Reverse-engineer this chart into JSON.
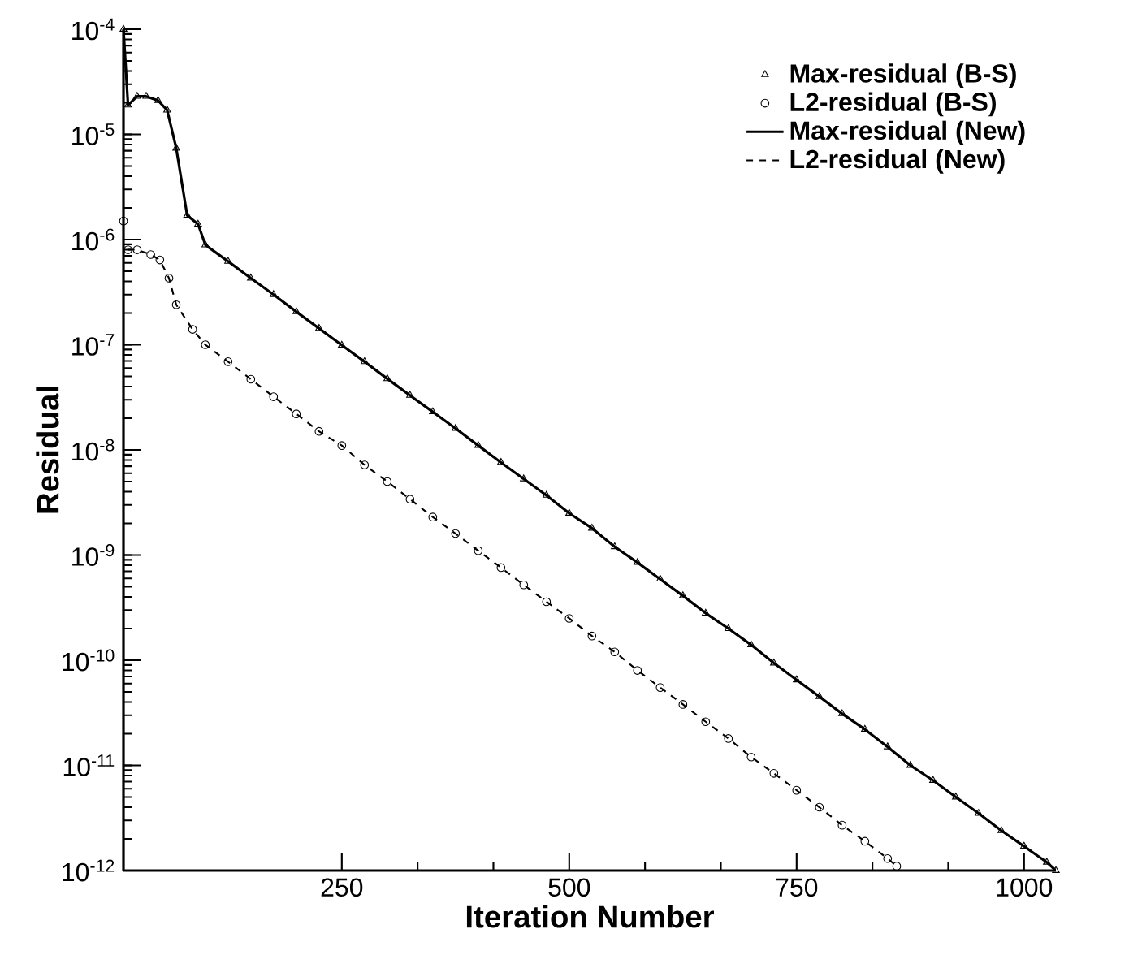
{
  "chart_data": {
    "type": "line",
    "xlabel": "Iteration Number",
    "ylabel": "Residual",
    "xlim": [
      10,
      1035
    ],
    "ylim": [
      1e-12,
      0.0001
    ],
    "log": "y",
    "grid": false,
    "legend": "top right",
    "xticks": [
      250,
      500,
      750,
      1000
    ],
    "yticks": [
      {
        "value": 1e-12,
        "label": "10$^{-12}$"
      },
      {
        "value": 1e-11,
        "label": "10$^{-11}$"
      },
      {
        "value": 1e-10,
        "label": "10$^{-10}$"
      },
      {
        "value": 1e-09,
        "label": "10$^{-9}$"
      },
      {
        "value": 1e-08,
        "label": "10$^{-8}$"
      },
      {
        "value": 1e-07,
        "label": "10$^{-7}$"
      },
      {
        "value": 1e-06,
        "label": "10$^{-6}$"
      },
      {
        "value": 1e-05,
        "label": "10$^{-5}$"
      },
      {
        "value": 0.0001,
        "label": "10$^{-4}$"
      }
    ],
    "series": [
      {
        "name": "Max-residual (B-S)",
        "type": "scatter",
        "marker": "triangle",
        "color": "#000000",
        "x": [
          10,
          15,
          25,
          35,
          48,
          58,
          68,
          80,
          92,
          100,
          125,
          150,
          175,
          200,
          225,
          250,
          275,
          300,
          325,
          350,
          375,
          400,
          425,
          450,
          475,
          500,
          525,
          550,
          575,
          600,
          625,
          650,
          675,
          700,
          725,
          750,
          775,
          800,
          825,
          850,
          875,
          900,
          925,
          950,
          975,
          1000,
          1025,
          1035
        ],
        "values": [
          0.0001,
          1.9e-05,
          2.3e-05,
          2.3e-05,
          2.1e-05,
          1.7e-05,
          7.4e-06,
          1.7e-06,
          1.4e-06,
          8.9e-07,
          6.2e-07,
          4.3e-07,
          3e-07,
          2.06e-07,
          1.43e-07,
          9.9e-08,
          6.9e-08,
          4.75e-08,
          3.3e-08,
          2.3e-08,
          1.6e-08,
          1.1e-08,
          7.6e-09,
          5.3e-09,
          3.7e-09,
          2.5e-09,
          1.8e-09,
          1.2e-09,
          8.5e-10,
          5.9e-10,
          4.1e-10,
          2.8e-10,
          2e-10,
          1.4e-10,
          9.4e-11,
          6.5e-11,
          4.5e-11,
          3.1e-11,
          2.2e-11,
          1.5e-11,
          1e-11,
          7.2e-12,
          5e-12,
          3.5e-12,
          2.4e-12,
          1.7e-12,
          1.2e-12,
          1e-12
        ]
      },
      {
        "name": "L2-residual (B-S)",
        "type": "scatter",
        "marker": "circle",
        "color": "#000000",
        "x": [
          10,
          15,
          25,
          40,
          50,
          60,
          68,
          86,
          100,
          125,
          150,
          175,
          200,
          225,
          250,
          275,
          300,
          325,
          350,
          375,
          400,
          425,
          450,
          475,
          500,
          525,
          550,
          575,
          600,
          625,
          650,
          675,
          700,
          725,
          750,
          775,
          800,
          825,
          850,
          860
        ],
        "values": [
          1.5e-06,
          8e-07,
          8e-07,
          7.2e-07,
          6.4e-07,
          4.3e-07,
          2.4e-07,
          1.4e-07,
          1e-07,
          6.9e-08,
          4.7e-08,
          3.2e-08,
          2.2e-08,
          1.5e-08,
          1.1e-08,
          7.2e-09,
          5e-09,
          3.4e-09,
          2.3e-09,
          1.6e-09,
          1.1e-09,
          7.6e-10,
          5.2e-10,
          3.6e-10,
          2.5e-10,
          1.7e-10,
          1.2e-10,
          8e-11,
          5.5e-11,
          3.8e-11,
          2.6e-11,
          1.8e-11,
          1.2e-11,
          8.4e-12,
          5.8e-12,
          4e-12,
          2.7e-12,
          1.9e-12,
          1.3e-12,
          1.1e-12
        ]
      },
      {
        "name": "Max-residual (New)",
        "line_style": "solid",
        "color": "#000000",
        "x": [
          10,
          15,
          25,
          35,
          48,
          58,
          68,
          80,
          92,
          100,
          125,
          150,
          175,
          200,
          225,
          250,
          275,
          300,
          325,
          350,
          375,
          400,
          425,
          450,
          475,
          500,
          525,
          550,
          575,
          600,
          625,
          650,
          675,
          700,
          725,
          750,
          775,
          800,
          825,
          850,
          875,
          900,
          925,
          950,
          975,
          1000,
          1025,
          1035
        ],
        "values": [
          0.0001,
          1.9e-05,
          2.3e-05,
          2.3e-05,
          2.1e-05,
          1.7e-05,
          7.4e-06,
          1.7e-06,
          1.4e-06,
          8.9e-07,
          6.2e-07,
          4.3e-07,
          3e-07,
          2.06e-07,
          1.43e-07,
          9.9e-08,
          6.9e-08,
          4.75e-08,
          3.3e-08,
          2.3e-08,
          1.6e-08,
          1.1e-08,
          7.6e-09,
          5.3e-09,
          3.7e-09,
          2.5e-09,
          1.8e-09,
          1.2e-09,
          8.5e-10,
          5.9e-10,
          4.1e-10,
          2.8e-10,
          2e-10,
          1.4e-10,
          9.4e-11,
          6.5e-11,
          4.5e-11,
          3.1e-11,
          2.2e-11,
          1.5e-11,
          1e-11,
          7.2e-12,
          5e-12,
          3.5e-12,
          2.4e-12,
          1.7e-12,
          1.2e-12,
          1e-12
        ]
      },
      {
        "name": "L2-residual (New)",
        "line_style": "dashed",
        "color": "#000000",
        "x": [
          15,
          25,
          40,
          50,
          60,
          68,
          86,
          100,
          125,
          150,
          175,
          200,
          225,
          250,
          275,
          300,
          325,
          350,
          375,
          400,
          425,
          450,
          475,
          500,
          525,
          550,
          575,
          600,
          625,
          650,
          675,
          700,
          725,
          750,
          775,
          800,
          825,
          850,
          860
        ],
        "values": [
          8e-07,
          8e-07,
          7.2e-07,
          6.4e-07,
          4.3e-07,
          2.4e-07,
          1.4e-07,
          1e-07,
          6.9e-08,
          4.7e-08,
          3.2e-08,
          2.2e-08,
          1.5e-08,
          1.1e-08,
          7.2e-09,
          5e-09,
          3.4e-09,
          2.3e-09,
          1.6e-09,
          1.1e-09,
          7.6e-10,
          5.2e-10,
          3.6e-10,
          2.5e-10,
          1.7e-10,
          1.2e-10,
          8e-11,
          5.5e-11,
          3.8e-11,
          2.6e-11,
          1.8e-11,
          1.2e-11,
          8.4e-12,
          5.8e-12,
          4e-12,
          2.7e-12,
          1.9e-12,
          1.3e-12,
          1.1e-12
        ]
      }
    ]
  }
}
